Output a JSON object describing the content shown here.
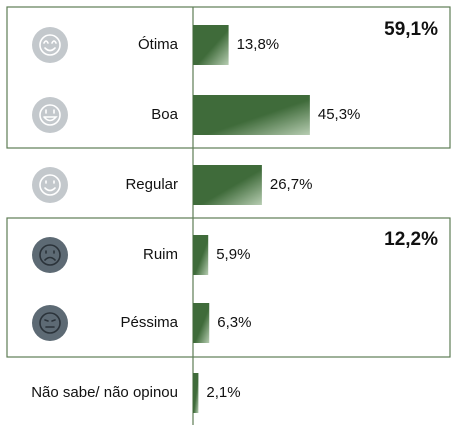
{
  "chart_data": {
    "type": "bar",
    "orientation": "horizontal",
    "categories": [
      "Ótima",
      "Boa",
      "Regular",
      "Ruim",
      "Péssima",
      "Não sabe/ não opinou"
    ],
    "values": [
      13.8,
      45.3,
      26.7,
      5.9,
      6.3,
      2.1
    ],
    "value_labels": [
      "13,8%",
      "45,3%",
      "26,7%",
      "5,9%",
      "6,3%",
      "2,1%"
    ],
    "color": "#3f6b3a",
    "annotations": [
      {
        "text": "59,1%"
      },
      {
        "text": "12,2%"
      }
    ]
  }
}
